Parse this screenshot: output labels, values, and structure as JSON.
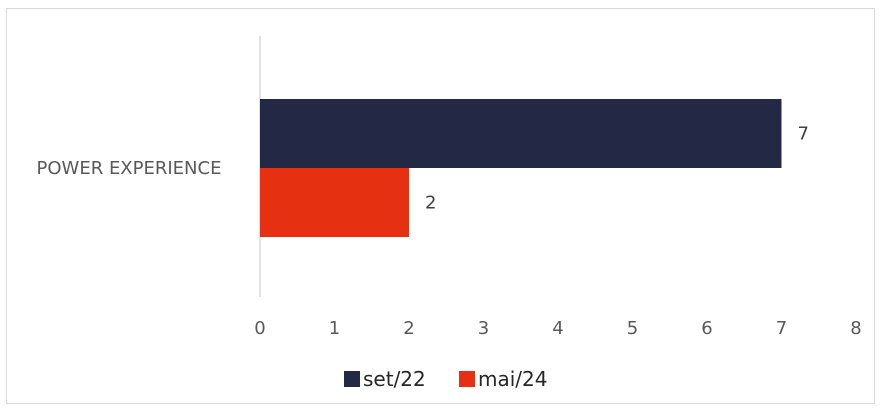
{
  "chart_data": {
    "type": "bar",
    "orientation": "horizontal",
    "categories": [
      "POWER EXPERIENCE"
    ],
    "series": [
      {
        "name": "set/22",
        "values": [
          7
        ],
        "color": "#232845"
      },
      {
        "name": "mai/24",
        "values": [
          2
        ],
        "color": "#e63012"
      }
    ],
    "xlim": [
      0,
      8
    ],
    "xticks": [
      "0",
      "1",
      "2",
      "3",
      "4",
      "5",
      "6",
      "7",
      "8"
    ],
    "title": "",
    "xlabel": "",
    "ylabel": "",
    "grid": false,
    "legend_position": "bottom",
    "data_labels": [
      "7",
      "2"
    ]
  }
}
